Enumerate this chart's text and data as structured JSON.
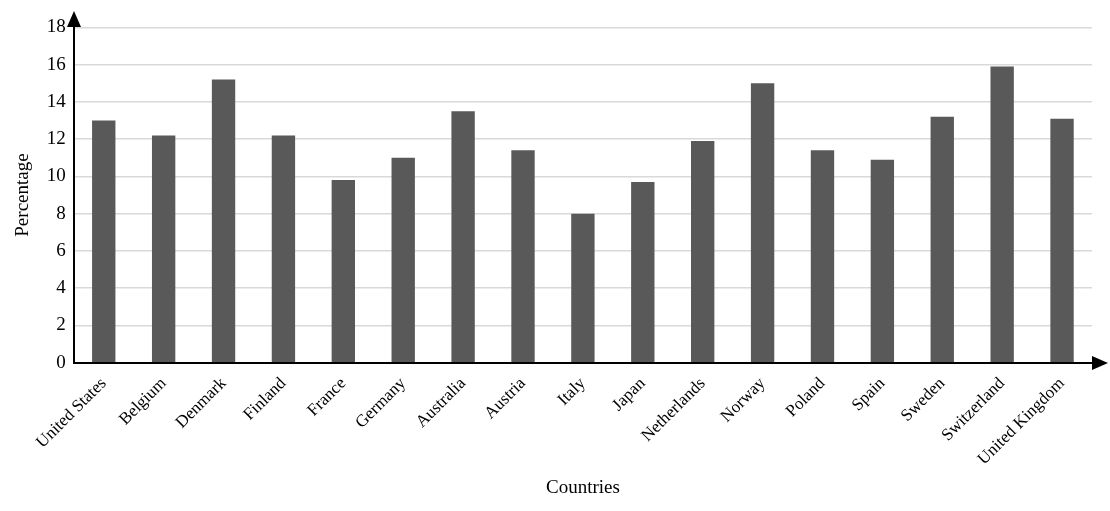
{
  "chart_data": {
    "type": "bar",
    "xlabel": "Countries",
    "ylabel": "Percentage",
    "categories": [
      "United States",
      "Belgium",
      "Denmark",
      "Finland",
      "France",
      "Germany",
      "Australia",
      "Austria",
      "Italy",
      "Japan",
      "Netherlands",
      "Norway",
      "Poland",
      "Spain",
      "Sweden",
      "Switzerland",
      "United Kingdom"
    ],
    "values": [
      13.0,
      12.2,
      15.2,
      12.2,
      9.8,
      11.0,
      13.5,
      11.4,
      8.0,
      9.7,
      11.9,
      15.0,
      11.4,
      10.9,
      13.2,
      15.9,
      13.1
    ],
    "color": "#595959",
    "ylim": [
      0,
      18
    ],
    "yticks": [
      0,
      2,
      4,
      6,
      8,
      10,
      12,
      14,
      16,
      18
    ],
    "grid": "y",
    "legend": false
  }
}
